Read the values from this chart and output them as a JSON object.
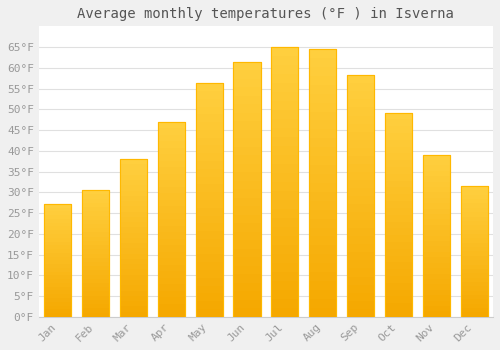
{
  "title": "Average monthly temperatures (°F ) in Isverna",
  "months": [
    "Jan",
    "Feb",
    "Mar",
    "Apr",
    "May",
    "Jun",
    "Jul",
    "Aug",
    "Sep",
    "Oct",
    "Nov",
    "Dec"
  ],
  "values": [
    27.2,
    30.5,
    38.0,
    47.0,
    56.3,
    61.5,
    65.0,
    64.5,
    58.2,
    49.2,
    39.1,
    31.5
  ],
  "bar_color_bottom": "#F5A800",
  "bar_color_top": "#FFD040",
  "bar_color_edge": "#FFB800",
  "ylim": [
    0,
    70
  ],
  "yticks": [
    0,
    5,
    10,
    15,
    20,
    25,
    30,
    35,
    40,
    45,
    50,
    55,
    60,
    65
  ],
  "ytick_labels": [
    "0°F",
    "5°F",
    "10°F",
    "15°F",
    "20°F",
    "25°F",
    "30°F",
    "35°F",
    "40°F",
    "45°F",
    "50°F",
    "55°F",
    "60°F",
    "65°F"
  ],
  "plot_bg_color": "#ffffff",
  "fig_bg_color": "#f0f0f0",
  "grid_color": "#e0e0e0",
  "title_fontsize": 10,
  "tick_fontsize": 8,
  "font_family": "monospace",
  "tick_color": "#999999",
  "title_color": "#555555"
}
